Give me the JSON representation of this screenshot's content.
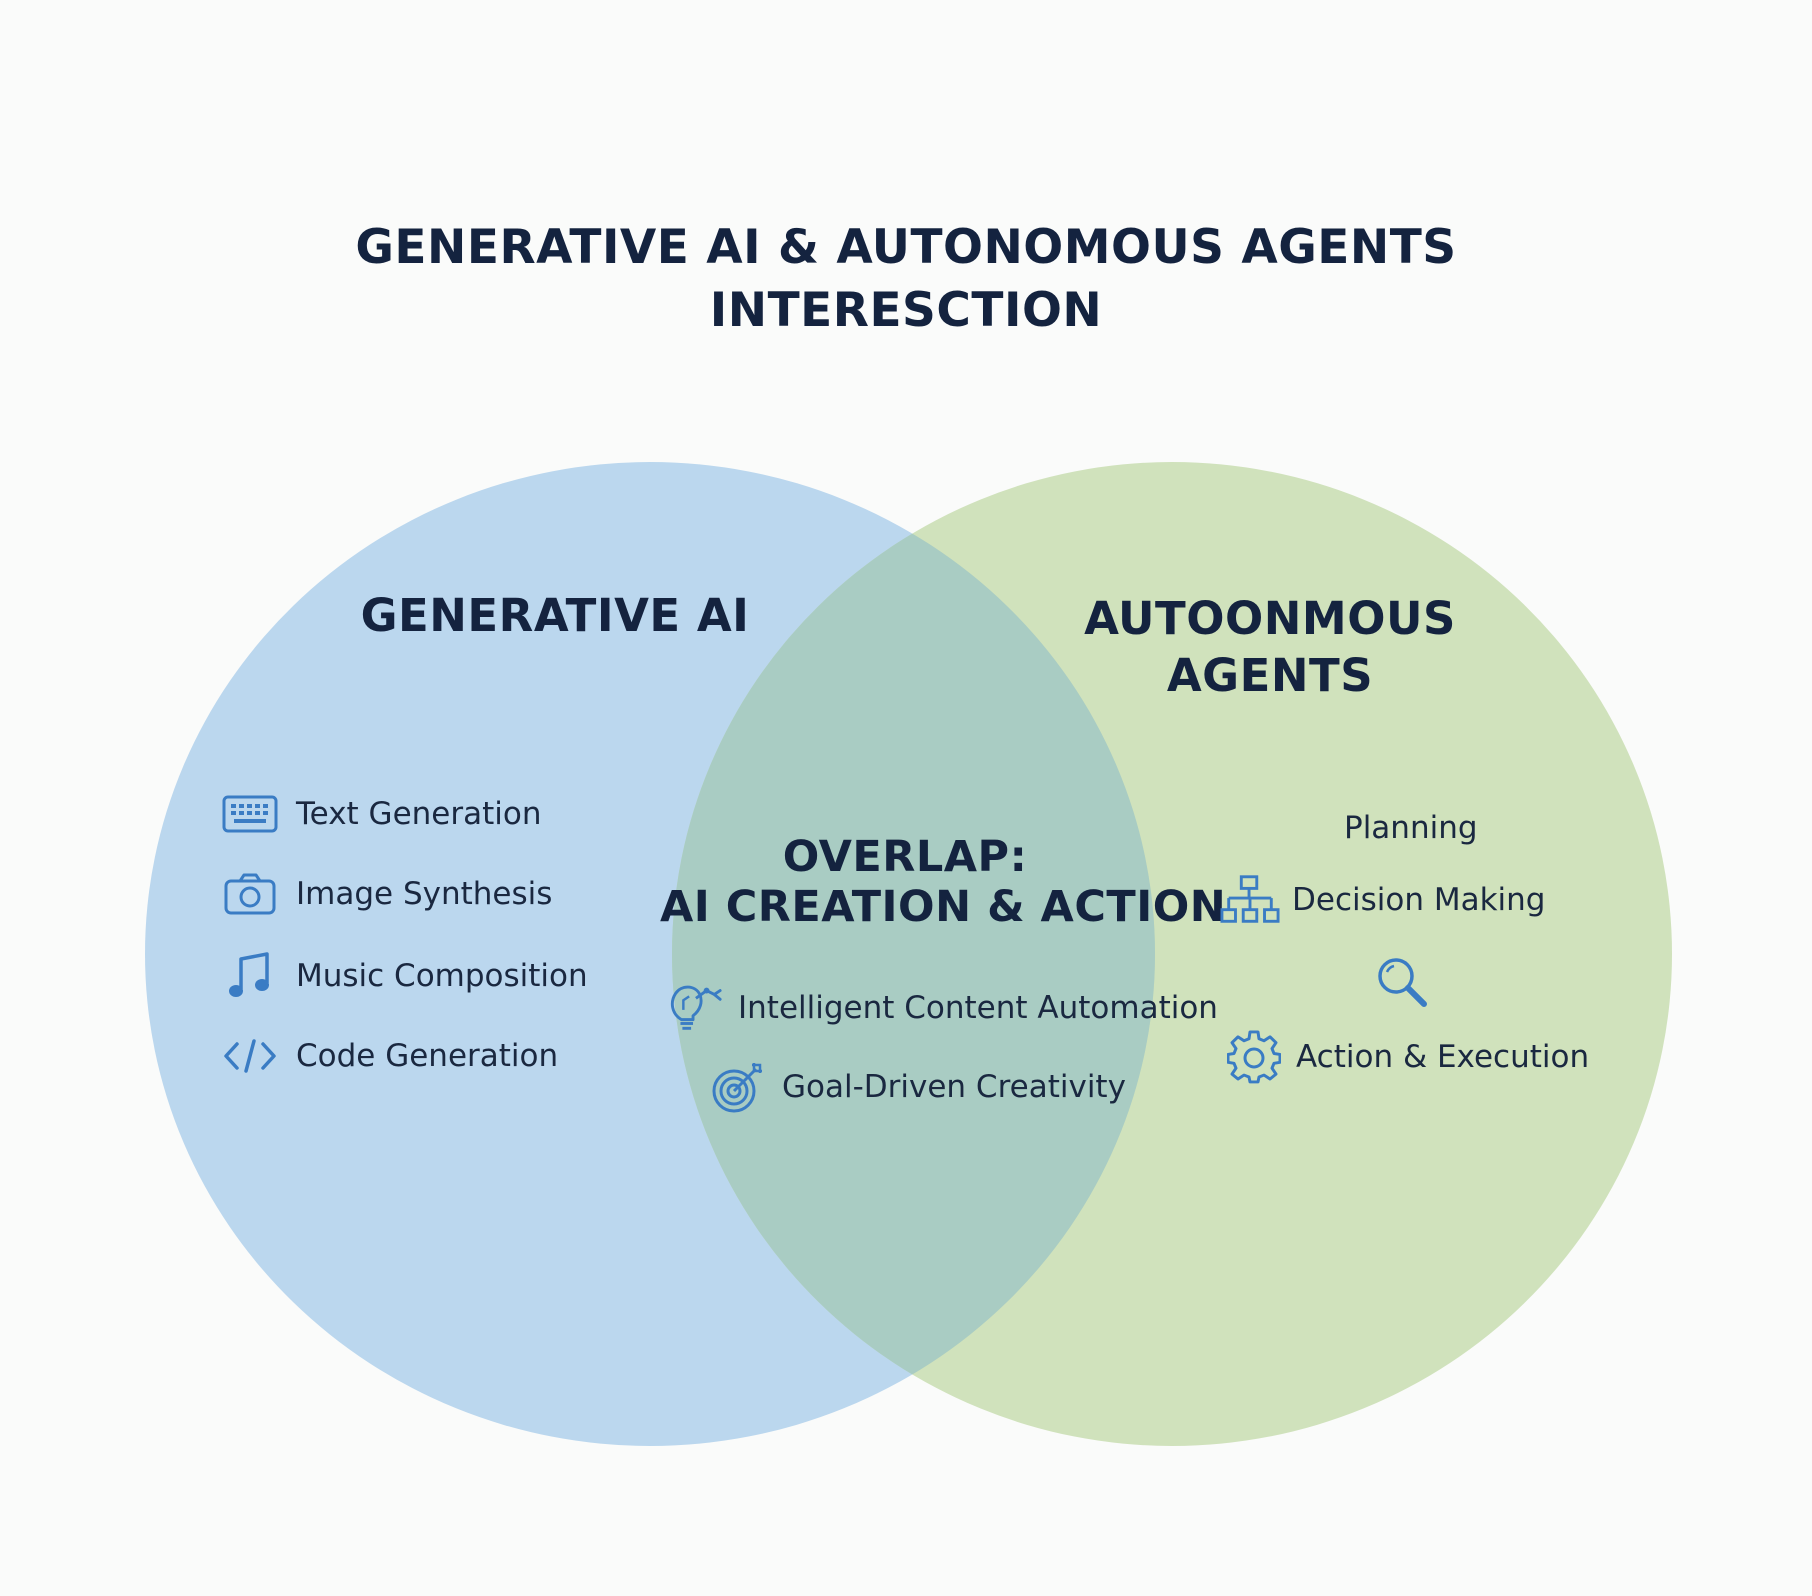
{
  "title": {
    "line1": "GENERATIVE AI & AUTONOMOUS AGENTS",
    "line2": "INTERESCTION"
  },
  "colors": {
    "left_circle": "#a9cdea",
    "right_circle": "#c4dbaa",
    "overlap": "#a9ccc3",
    "heading_text": "#14233f",
    "icon_blue": "#3a7cc4"
  },
  "sets": {
    "left": {
      "heading": "GENERATIVE AI",
      "items": [
        {
          "label": "Text Generation",
          "icon": "keyboard-icon"
        },
        {
          "label": "Image Synthesis",
          "icon": "camera-icon"
        },
        {
          "label": "Music Composition",
          "icon": "music-note-icon"
        },
        {
          "label": "Code Generation",
          "icon": "code-icon"
        }
      ]
    },
    "right": {
      "heading_line1": "AUTOONMOUS",
      "heading_line2": "AGENTS",
      "items": [
        {
          "label": "Planning",
          "icon": ""
        },
        {
          "label": "Decision Making",
          "icon": "hierarchy-icon"
        },
        {
          "label": "",
          "icon": "magnifier-icon"
        },
        {
          "label": "Action & Execution",
          "icon": "gear-icon"
        }
      ]
    },
    "overlap": {
      "heading_line1": "OVERLAP:",
      "heading_line2": "AI CREATION & ACTION",
      "items": [
        {
          "label": "Intelligent Content Automation",
          "icon": "lightbulb-robot-arm-icon"
        },
        {
          "label": "Goal-Driven Creativity",
          "icon": "target-arrow-icon"
        }
      ]
    }
  }
}
